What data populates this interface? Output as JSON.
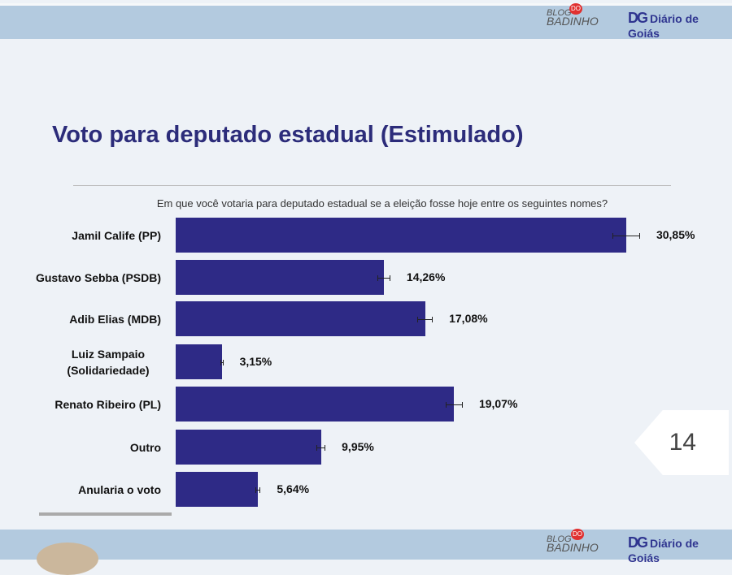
{
  "header": {
    "blog_logo": "BLOG DO BADINHO",
    "site_logo": "Diário de Goiás",
    "dg": "DG"
  },
  "chart_data": {
    "type": "bar",
    "orientation": "horizontal",
    "title": "Voto para deputado estadual (Estimulado)",
    "subtitle": "Em que você votaria para deputado estadual se a eleição fosse hoje entre os seguintes nomes?",
    "categories": [
      "Jamil Calife (PP)",
      "Gustavo Sebba (PSDB)",
      "Adib Elias (MDB)",
      "Luiz Sampaio (Solidariedade)",
      "Renato Ribeiro (PL)",
      "Outro",
      "Anularia o voto"
    ],
    "values": [
      30.85,
      14.26,
      17.08,
      3.15,
      19.07,
      9.95,
      5.64
    ],
    "labels": [
      "30,85%",
      "14,26%",
      "17,08%",
      "3,15%",
      "19,07%",
      "9,95%",
      "5,64%"
    ],
    "error_bars": true,
    "color": "#2e2a86",
    "xlim": [
      0,
      31
    ]
  },
  "page_number": "14"
}
